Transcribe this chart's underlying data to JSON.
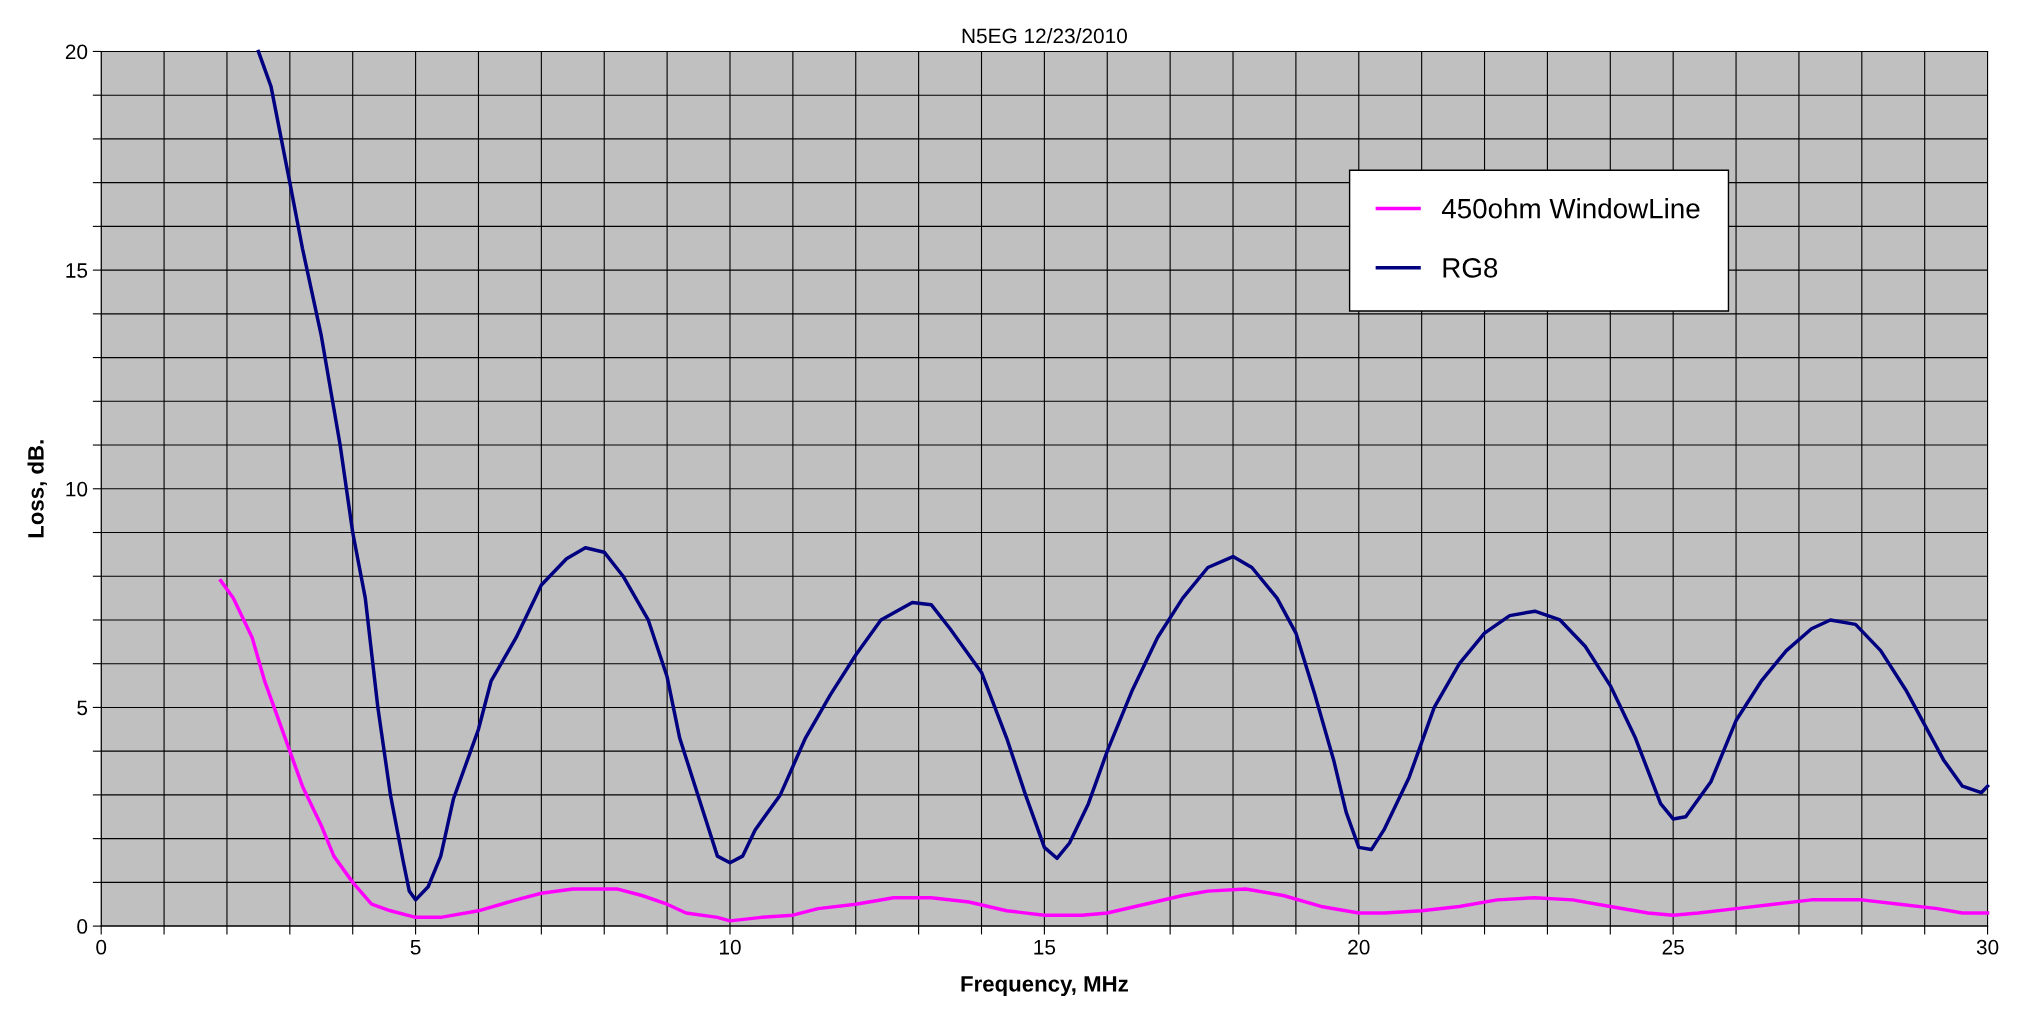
{
  "chart_data": {
    "type": "line",
    "title": "N5EG 12/23/2010",
    "xlabel": "Frequency, MHz",
    "ylabel": "Loss, dB.",
    "xlim": [
      0,
      30
    ],
    "ylim": [
      0,
      20
    ],
    "xticks": [
      0,
      {
        "value": 1,
        "label": null
      },
      {
        "value": 2,
        "label": null
      },
      {
        "value": 3,
        "label": null
      },
      {
        "value": 4,
        "label": null
      },
      5,
      {
        "value": 6,
        "label": null
      },
      {
        "value": 7,
        "label": null
      },
      {
        "value": 8,
        "label": null
      },
      {
        "value": 9,
        "label": null
      },
      10,
      {
        "value": 11,
        "label": null
      },
      {
        "value": 12,
        "label": null
      },
      {
        "value": 13,
        "label": null
      },
      {
        "value": 14,
        "label": null
      },
      15,
      {
        "value": 16,
        "label": null
      },
      {
        "value": 17,
        "label": null
      },
      {
        "value": 18,
        "label": null
      },
      {
        "value": 19,
        "label": null
      },
      20,
      {
        "value": 21,
        "label": null
      },
      {
        "value": 22,
        "label": null
      },
      {
        "value": 23,
        "label": null
      },
      {
        "value": 24,
        "label": null
      },
      25,
      {
        "value": 26,
        "label": null
      },
      {
        "value": 27,
        "label": null
      },
      {
        "value": 28,
        "label": null
      },
      {
        "value": 29,
        "label": null
      },
      30
    ],
    "yticks": [
      0,
      {
        "value": 1,
        "label": null
      },
      {
        "value": 2,
        "label": null
      },
      {
        "value": 3,
        "label": null
      },
      {
        "value": 4,
        "label": null
      },
      5,
      {
        "value": 6,
        "label": null
      },
      {
        "value": 7,
        "label": null
      },
      {
        "value": 8,
        "label": null
      },
      {
        "value": 9,
        "label": null
      },
      10,
      {
        "value": 11,
        "label": null
      },
      {
        "value": 12,
        "label": null
      },
      {
        "value": 13,
        "label": null
      },
      {
        "value": 14,
        "label": null
      },
      15,
      {
        "value": 16,
        "label": null
      },
      {
        "value": 17,
        "label": null
      },
      {
        "value": 18,
        "label": null
      },
      {
        "value": 19,
        "label": null
      },
      20
    ],
    "grid": true,
    "legend": "top right",
    "marker": "none",
    "line_style": "solid",
    "series": [
      {
        "name": "450ohm WindowLine",
        "color": "#ff00ff",
        "x": [
          1.9,
          2.1,
          2.4,
          2.6,
          3.0,
          3.2,
          3.5,
          3.7,
          4.0,
          4.3,
          4.6,
          5.0,
          5.4,
          6.0,
          6.6,
          7.0,
          7.5,
          8.2,
          8.6,
          9.0,
          9.3,
          9.8,
          10.0,
          10.5,
          11.0,
          11.4,
          12.0,
          12.6,
          13.2,
          13.8,
          14.4,
          15.0,
          15.6,
          16.0,
          16.6,
          17.2,
          17.6,
          18.2,
          18.8,
          19.4,
          20.0,
          20.4,
          21.0,
          21.6,
          22.2,
          22.8,
          23.4,
          24.0,
          24.6,
          25.0,
          25.4,
          26.0,
          26.6,
          27.2,
          28.0,
          28.6,
          29.2,
          29.6,
          30.0
        ],
        "values": [
          7.9,
          7.5,
          6.6,
          5.6,
          4.0,
          3.2,
          2.3,
          1.6,
          1.0,
          0.5,
          0.35,
          0.2,
          0.2,
          0.35,
          0.6,
          0.75,
          0.85,
          0.85,
          0.7,
          0.5,
          0.3,
          0.2,
          0.12,
          0.2,
          0.25,
          0.4,
          0.5,
          0.65,
          0.65,
          0.55,
          0.35,
          0.25,
          0.25,
          0.3,
          0.5,
          0.7,
          0.8,
          0.85,
          0.7,
          0.45,
          0.3,
          0.3,
          0.35,
          0.45,
          0.6,
          0.65,
          0.6,
          0.45,
          0.3,
          0.25,
          0.3,
          0.4,
          0.5,
          0.6,
          0.6,
          0.5,
          0.4,
          0.3,
          0.3
        ]
      },
      {
        "name": "RG8",
        "color": "#000080",
        "x": [
          2.5,
          2.7,
          3.0,
          3.2,
          3.5,
          3.8,
          4.0,
          4.2,
          4.4,
          4.6,
          4.8,
          4.9,
          5.0,
          5.2,
          5.4,
          5.6,
          6.0,
          6.2,
          6.6,
          7.0,
          7.4,
          7.7,
          8.0,
          8.3,
          8.7,
          9.0,
          9.2,
          9.6,
          9.8,
          10.0,
          10.2,
          10.4,
          10.8,
          11.2,
          11.6,
          12.0,
          12.4,
          12.9,
          13.2,
          13.5,
          14.0,
          14.4,
          14.7,
          15.0,
          15.2,
          15.4,
          15.7,
          16.0,
          16.4,
          16.8,
          17.2,
          17.6,
          18.0,
          18.3,
          18.7,
          19.0,
          19.3,
          19.6,
          19.8,
          20.0,
          20.2,
          20.4,
          20.8,
          21.2,
          21.6,
          22.0,
          22.4,
          22.8,
          23.2,
          23.6,
          24.0,
          24.4,
          24.8,
          25.0,
          25.2,
          25.6,
          26.0,
          26.4,
          26.8,
          27.2,
          27.5,
          27.9,
          28.3,
          28.7,
          29.0,
          29.3,
          29.6,
          29.9,
          30.0
        ],
        "values": [
          20,
          19.2,
          17,
          15.5,
          13.5,
          11,
          9,
          7.5,
          5,
          3,
          1.5,
          0.8,
          0.6,
          0.9,
          1.6,
          2.9,
          4.5,
          5.6,
          6.6,
          7.8,
          8.4,
          8.65,
          8.55,
          8.0,
          7.0,
          5.7,
          4.3,
          2.5,
          1.6,
          1.45,
          1.6,
          2.2,
          3.0,
          4.3,
          5.3,
          6.2,
          7.0,
          7.4,
          7.35,
          6.8,
          5.8,
          4.3,
          3.0,
          1.8,
          1.55,
          1.9,
          2.8,
          4.0,
          5.4,
          6.6,
          7.5,
          8.2,
          8.45,
          8.2,
          7.5,
          6.7,
          5.3,
          3.8,
          2.6,
          1.8,
          1.75,
          2.2,
          3.4,
          5.0,
          6.0,
          6.7,
          7.1,
          7.2,
          7.0,
          6.4,
          5.5,
          4.3,
          2.8,
          2.45,
          2.5,
          3.3,
          4.7,
          5.6,
          6.3,
          6.8,
          7.0,
          6.9,
          6.3,
          5.4,
          4.6,
          3.8,
          3.2,
          3.05,
          3.2
        ]
      }
    ]
  }
}
